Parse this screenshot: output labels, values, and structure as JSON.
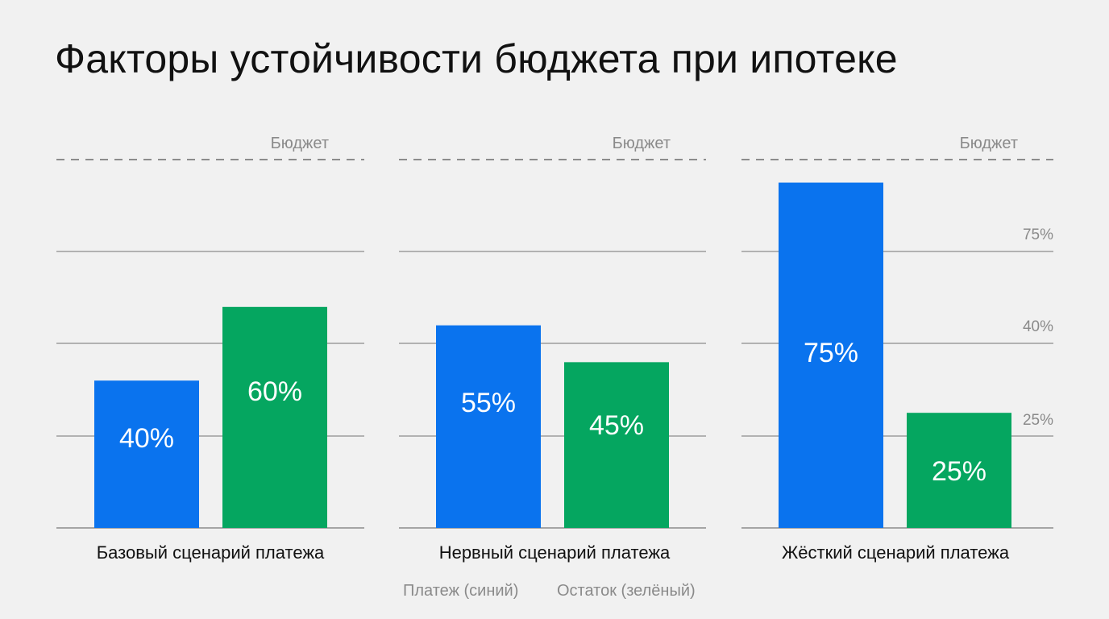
{
  "title": "Факторы устойчивости бюджета при ипотеке",
  "colors": {
    "payment": "#0a73ee",
    "remainder": "#05a660",
    "grid": "#8c8c8c",
    "muted": "#8a8a8a",
    "text": "#111111"
  },
  "legend": {
    "payment": "Платеж (синий)",
    "remainder": "Остаток (зелёный)"
  },
  "chart_data": [
    {
      "type": "bar",
      "title": "Базовый сценарий платежа",
      "budget_label": "Бюджет",
      "series": [
        {
          "name": "Платеж (синий)",
          "value": 40,
          "label": "40%"
        },
        {
          "name": "Остаток (зелёный)",
          "value": 60,
          "label": "60%"
        }
      ],
      "ylim": [
        0,
        100
      ],
      "grid": true
    },
    {
      "type": "bar",
      "title": "Нервный сценарий платежа",
      "budget_label": "Бюджет",
      "series": [
        {
          "name": "Платеж (синий)",
          "value": 55,
          "label": "55%"
        },
        {
          "name": "Остаток (зелёный)",
          "value": 45,
          "label": "45%"
        }
      ],
      "ylim": [
        0,
        100
      ],
      "grid": true
    },
    {
      "type": "bar",
      "title": "Жёсткий сценарий платежа",
      "budget_label": "Бюджет",
      "series": [
        {
          "name": "Платеж (синий)",
          "value": 75,
          "label": "75%"
        },
        {
          "name": "Остаток (зелёный)",
          "value": 25,
          "label": "25%"
        }
      ],
      "tick_labels": [
        "75%",
        "40%",
        "25%"
      ],
      "ylim": [
        0,
        100
      ],
      "grid": true
    }
  ]
}
